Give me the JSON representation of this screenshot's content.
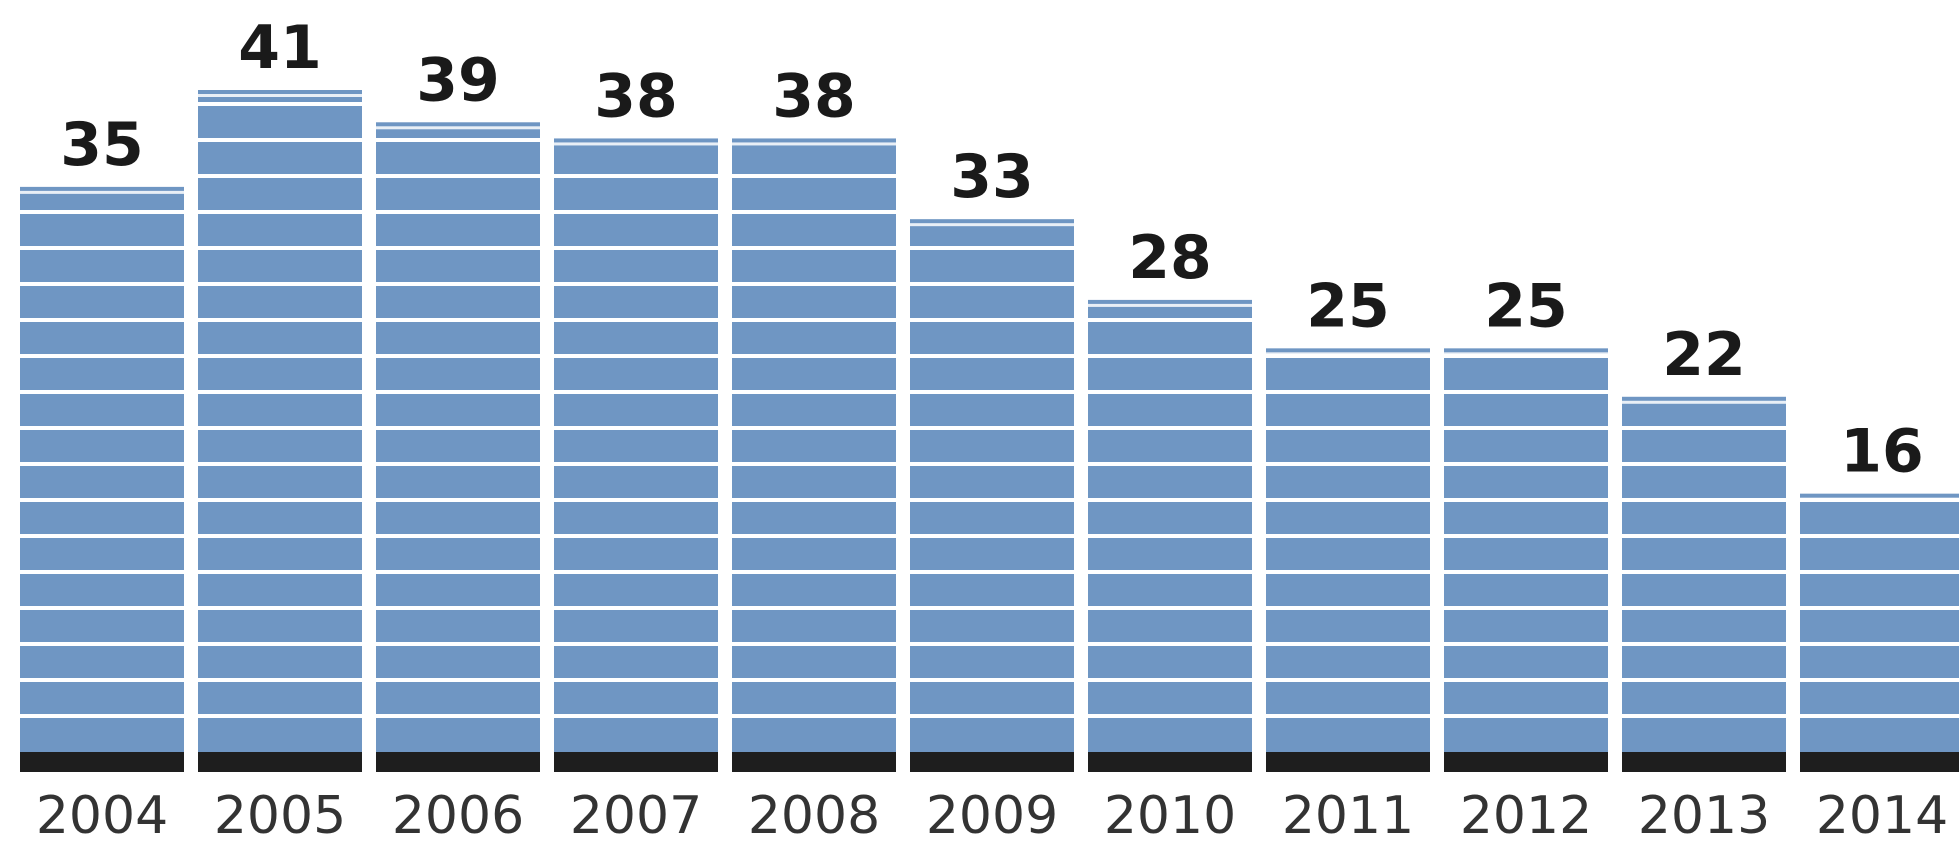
{
  "chart_data": {
    "type": "bar",
    "categories": [
      "2004",
      "2005",
      "2006",
      "2007",
      "2008",
      "2009",
      "2010",
      "2011",
      "2012",
      "2013",
      "2014"
    ],
    "values": [
      35,
      41,
      39,
      38,
      38,
      33,
      28,
      25,
      25,
      22,
      16
    ],
    "title": "",
    "xlabel": "",
    "ylabel": "",
    "ylim": [
      0,
      41
    ],
    "grid": false,
    "legend": "none",
    "data_labels": true,
    "colors": {
      "bar": "#6f96c3",
      "stripe": "#ffffff",
      "baseline": "#1e1e1e",
      "value_text": "#1a1a1a",
      "tick_text": "#333333"
    }
  }
}
